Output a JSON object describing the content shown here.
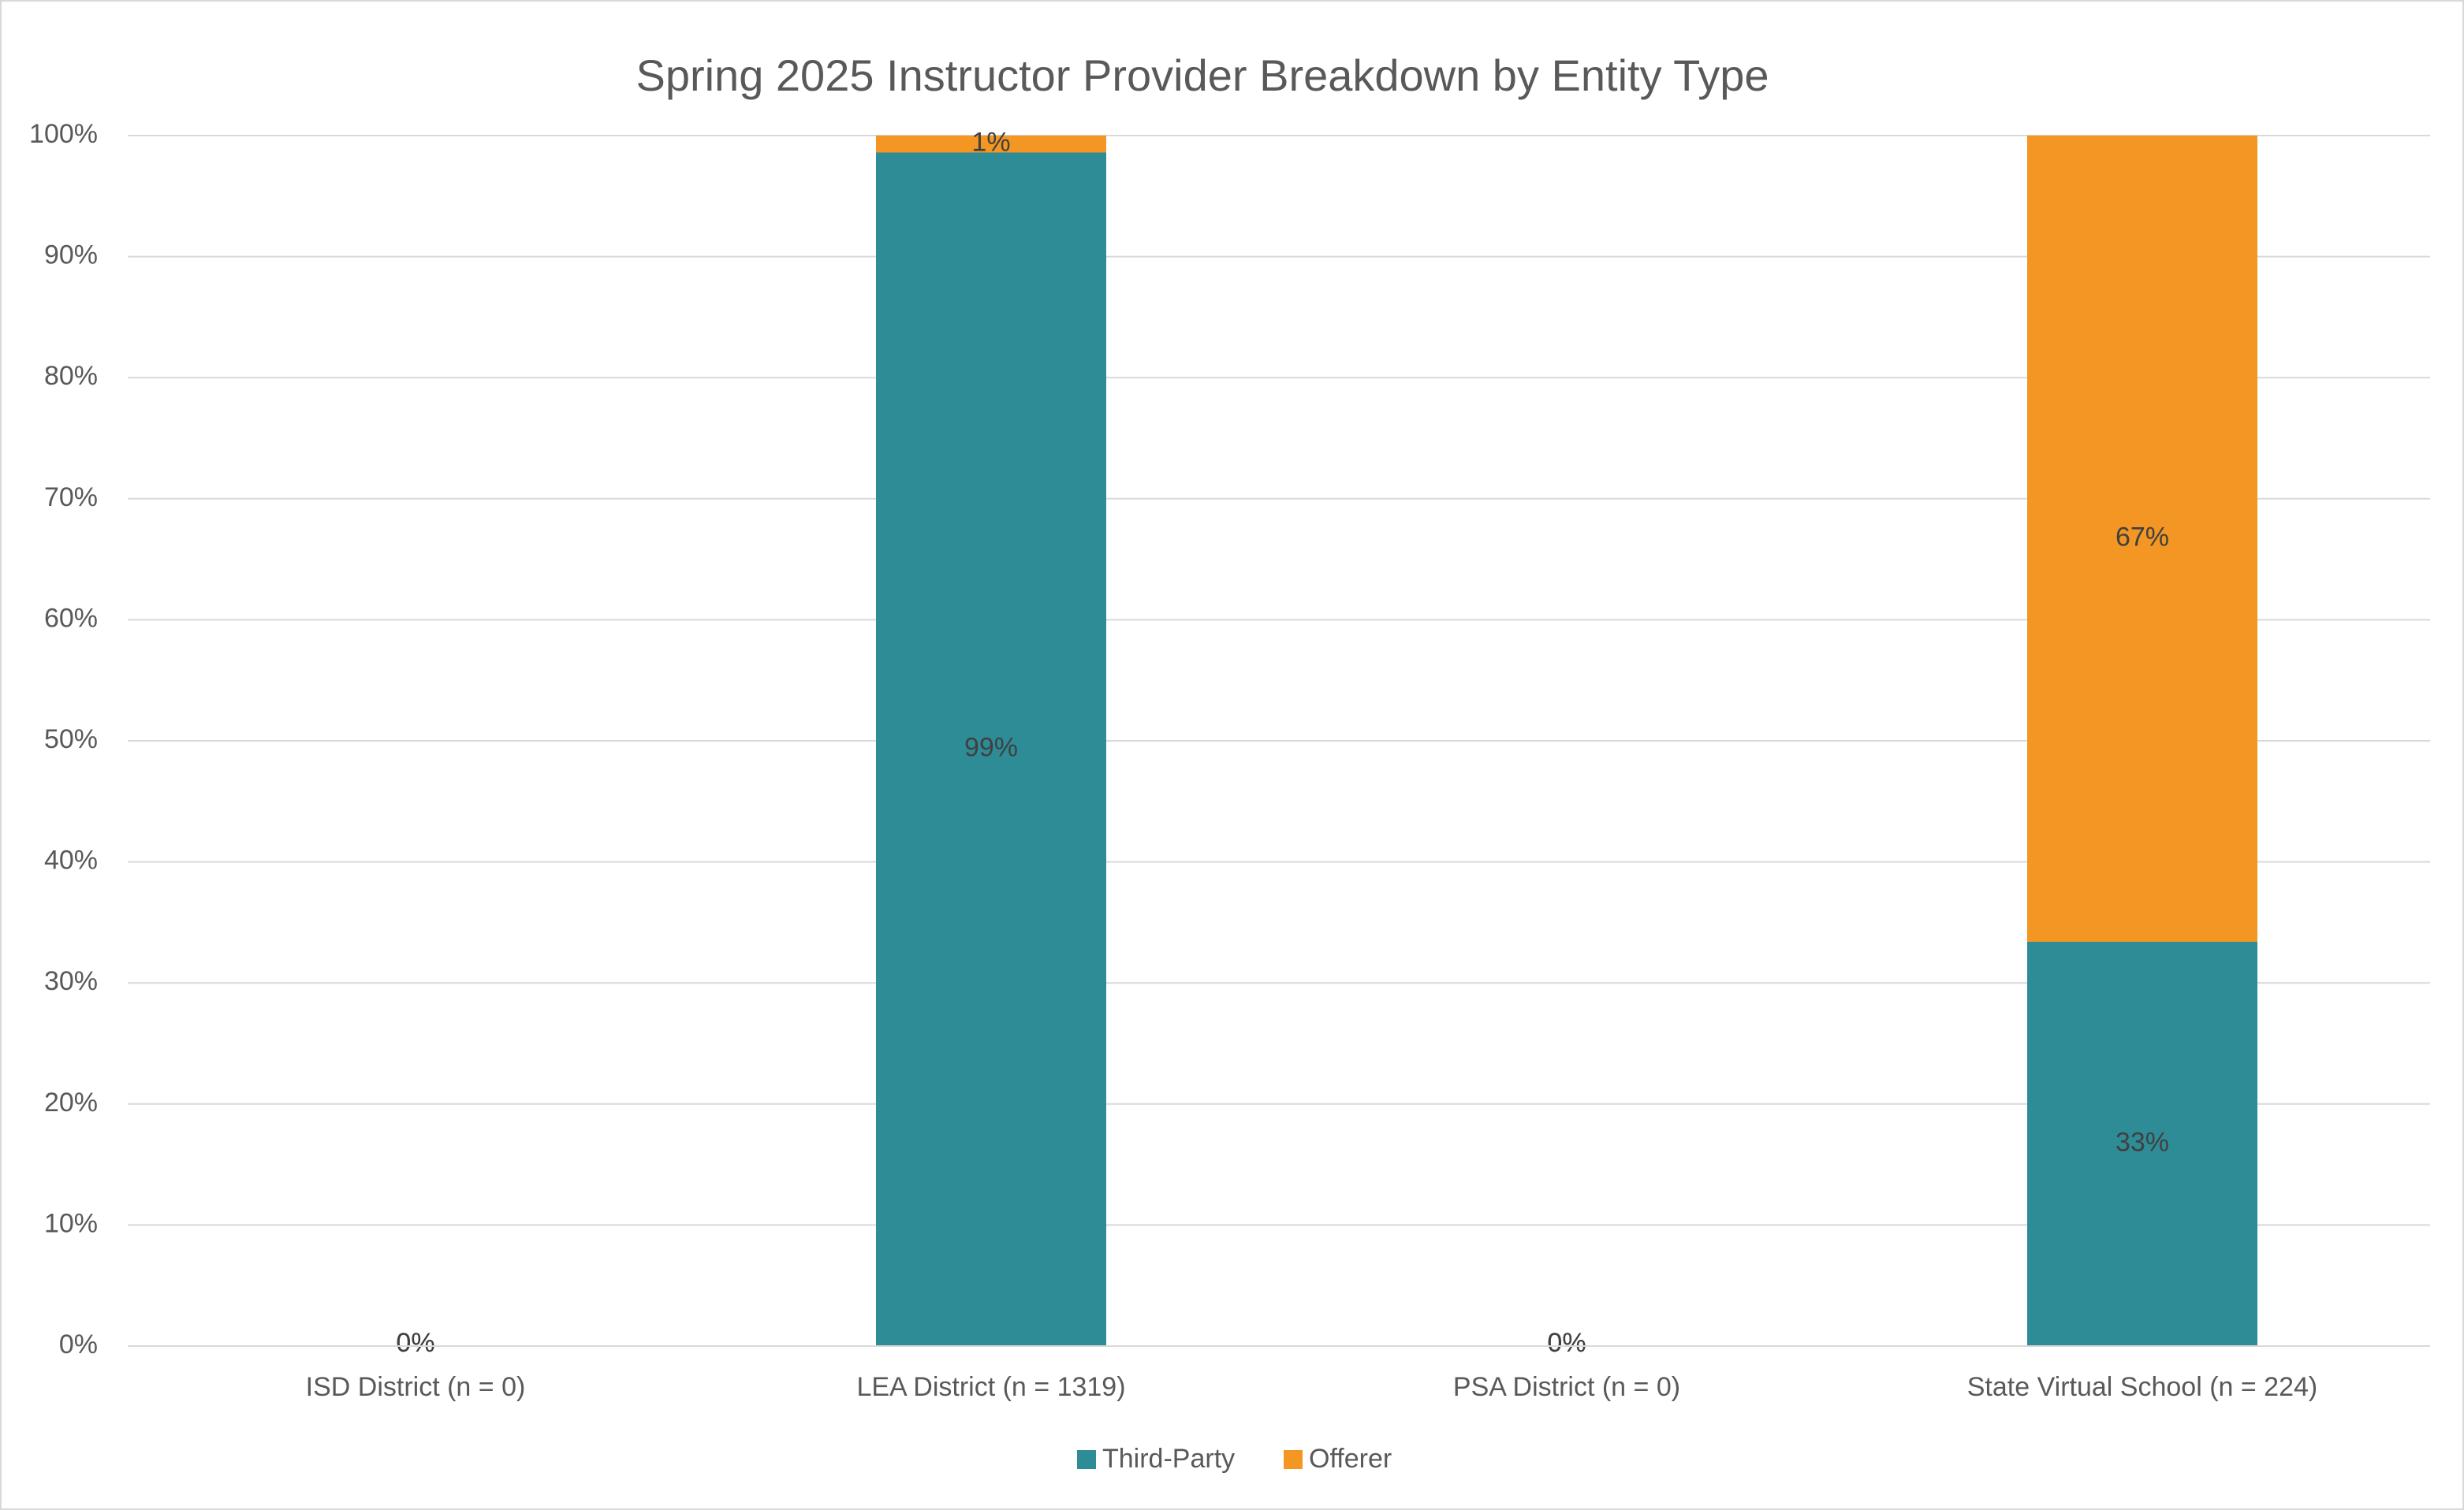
{
  "chart_data": {
    "type": "stacked-bar",
    "title": "Spring 2025 Instructor Provider Breakdown by Entity Type",
    "categories": [
      "ISD District (n = 0)",
      "LEA District (n = 1319)",
      "PSA District (n = 0)",
      "State Virtual School (n = 224)"
    ],
    "series": [
      {
        "name": "Third-Party",
        "color": "#2e8c97",
        "values": [
          0,
          98.6,
          0,
          33.4
        ],
        "value_labels": [
          "0%",
          "99%",
          "0%",
          "33%"
        ]
      },
      {
        "name": "Offerer",
        "color": "#f39623",
        "values": [
          0,
          1.4,
          0,
          66.6
        ],
        "value_labels": [
          "0%",
          "1%",
          "0%",
          "67%"
        ]
      }
    ],
    "ylim": [
      0,
      100
    ],
    "yticks": [
      {
        "value": 0,
        "label": "0%"
      },
      {
        "value": 10,
        "label": "10%"
      },
      {
        "value": 20,
        "label": "20%"
      },
      {
        "value": 30,
        "label": "30%"
      },
      {
        "value": 40,
        "label": "40%"
      },
      {
        "value": 50,
        "label": "50%"
      },
      {
        "value": 60,
        "label": "60%"
      },
      {
        "value": 70,
        "label": "70%"
      },
      {
        "value": 80,
        "label": "80%"
      },
      {
        "value": 90,
        "label": "90%"
      },
      {
        "value": 100,
        "label": "100%"
      }
    ],
    "grid": true,
    "legend": "bottom"
  }
}
